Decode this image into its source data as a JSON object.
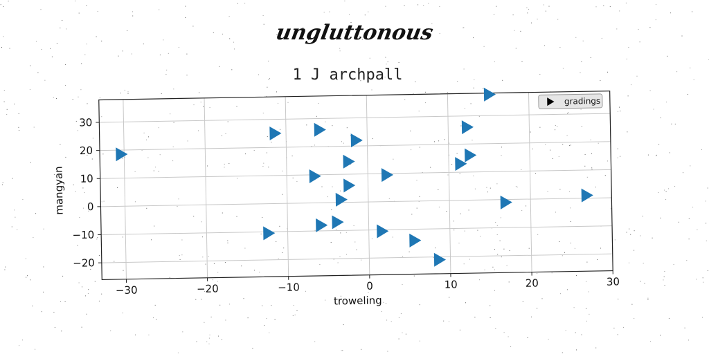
{
  "chart_data": {
    "type": "scatter",
    "suptitle": "ungluttonous",
    "title": "1 J archpall",
    "xlabel": "troweling",
    "ylabel": "mangyan",
    "xlim": [
      -33,
      30
    ],
    "ylim": [
      -26,
      38
    ],
    "xticks": [
      -30,
      -20,
      -10,
      0,
      10,
      20,
      30
    ],
    "yticks": [
      -20,
      -10,
      0,
      10,
      20,
      30
    ],
    "xtick_labels": [
      "−30",
      "−20",
      "−10",
      "0",
      "10",
      "20",
      "30"
    ],
    "ytick_labels": [
      "−20",
      "−10",
      "0",
      "10",
      "20",
      "30"
    ],
    "grid": true,
    "legend_position": "top-right",
    "marker": "triangle-right",
    "color": "#1f77b4",
    "series": [
      {
        "name": "gradings",
        "points": [
          {
            "x": 15.0,
            "y": 37.5
          },
          {
            "x": -30.5,
            "y": 18.5
          },
          {
            "x": -11.5,
            "y": 25.0
          },
          {
            "x": -6.0,
            "y": 26.0
          },
          {
            "x": -1.5,
            "y": 22.0
          },
          {
            "x": 12.2,
            "y": 26.0
          },
          {
            "x": -2.5,
            "y": 14.5
          },
          {
            "x": 12.5,
            "y": 16.0
          },
          {
            "x": 11.3,
            "y": 13.0
          },
          {
            "x": -6.7,
            "y": 9.5
          },
          {
            "x": 2.2,
            "y": 9.5
          },
          {
            "x": -2.5,
            "y": 6.0
          },
          {
            "x": -3.5,
            "y": 1.0
          },
          {
            "x": 16.8,
            "y": -1.0
          },
          {
            "x": 26.8,
            "y": 1.0
          },
          {
            "x": -6.0,
            "y": -8.0
          },
          {
            "x": -4.0,
            "y": -7.0
          },
          {
            "x": -12.5,
            "y": -10.5
          },
          {
            "x": 1.5,
            "y": -10.5
          },
          {
            "x": 5.5,
            "y": -14.0
          },
          {
            "x": 8.5,
            "y": -21.0
          }
        ]
      }
    ]
  }
}
